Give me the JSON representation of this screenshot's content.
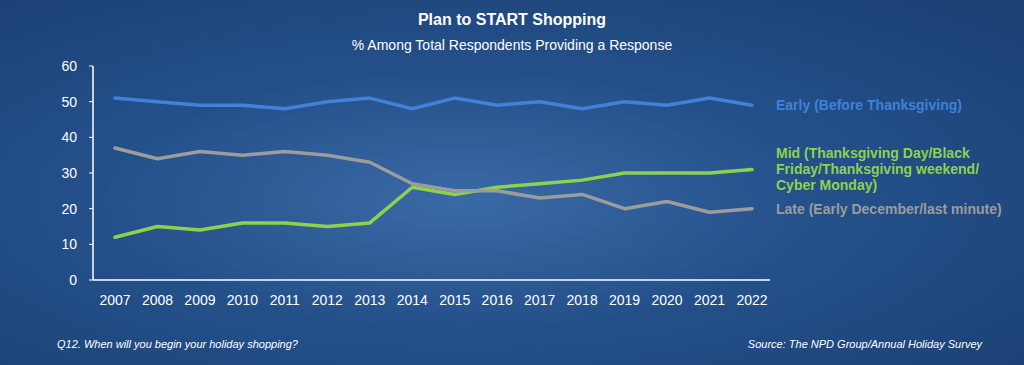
{
  "chart_data": {
    "type": "line",
    "title": "Plan to START Shopping",
    "subtitle": "% Among Total Respondents Providing a Response",
    "annotations": [
      "Q12. When will you begin your holiday shopping?",
      "Source: The NPD Group/Annual Holiday Survey"
    ],
    "categories": [
      "2007",
      "2008",
      "2009",
      "2010",
      "2011",
      "2012",
      "2013",
      "2014",
      "2015",
      "2016",
      "2017",
      "2018",
      "2019",
      "2020",
      "2021",
      "2022"
    ],
    "series": [
      {
        "name": "Early (Before Thanksgiving)",
        "color": "#3f82d8",
        "values": [
          51,
          50,
          49,
          49,
          48,
          50,
          51,
          48,
          51,
          49,
          50,
          48,
          50,
          49,
          51,
          49
        ]
      },
      {
        "name": "Mid (Thanksgiving Day/Black Friday/Thanksgiving weekend/Cyber Monday)",
        "color": "#8fd14f",
        "values": [
          12,
          15,
          14,
          16,
          16,
          15,
          16,
          26,
          24,
          26,
          27,
          28,
          30,
          30,
          30,
          31
        ]
      },
      {
        "name": "Late (Early December/last minute)",
        "color": "#9c9c9c",
        "values": [
          37,
          34,
          36,
          35,
          36,
          35,
          33,
          27,
          25,
          25,
          23,
          24,
          20,
          22,
          19,
          20
        ]
      }
    ],
    "ylim": [
      0,
      60
    ],
    "yticks": [
      0,
      10,
      20,
      30,
      40,
      50,
      60
    ],
    "grid": false,
    "legend": "right"
  }
}
